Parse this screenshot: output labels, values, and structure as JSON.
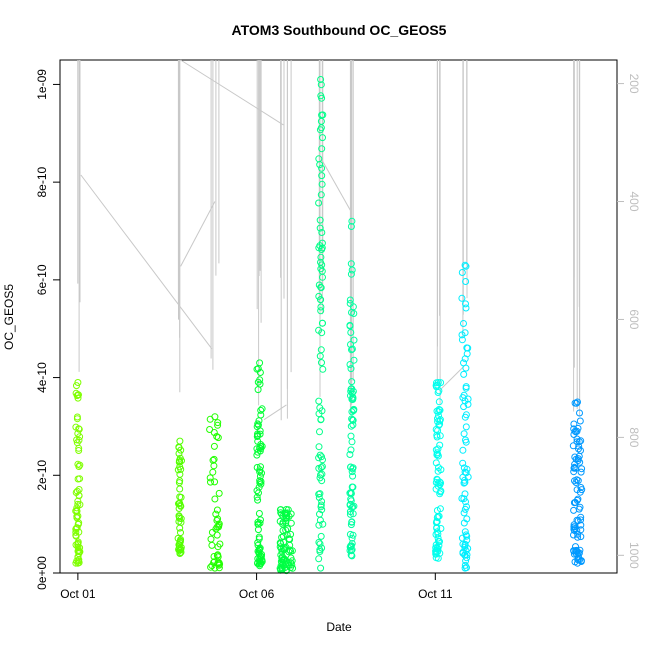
{
  "chart_data": {
    "type": "scatter",
    "title": "ATOM3 Southbound OC_GEOS5",
    "xlabel": "Date",
    "ylabel": "OC_GEOS5",
    "x_axis": {
      "type": "date",
      "range": [
        "2016-09-30T12:00",
        "2016-10-16T02:00"
      ],
      "ticks": [
        {
          "value": "2016-10-01",
          "label": "Oct 01"
        },
        {
          "value": "2016-10-06",
          "label": "Oct 06"
        },
        {
          "value": "2016-10-11",
          "label": "Oct 11"
        }
      ]
    },
    "y_axis_left": {
      "range": [
        0,
        1.05e-09
      ],
      "ticks": [
        {
          "value": 0,
          "label": "0e+00"
        },
        {
          "value": 2e-10,
          "label": "2e-10"
        },
        {
          "value": 4e-10,
          "label": "4e-10"
        },
        {
          "value": 6e-10,
          "label": "6e-10"
        },
        {
          "value": 8e-10,
          "label": "8e-10"
        },
        {
          "value": 1e-09,
          "label": "1e-09"
        }
      ]
    },
    "y_axis_right": {
      "quantity": "pressure",
      "reversed": true,
      "range": [
        160,
        1030
      ],
      "color": "#bebebe",
      "ticks": [
        {
          "value": 200,
          "label": "200"
        },
        {
          "value": 400,
          "label": "400"
        },
        {
          "value": 600,
          "label": "600"
        },
        {
          "value": 800,
          "label": "800"
        },
        {
          "value": 1000,
          "label": "1000"
        }
      ]
    },
    "marker": "open-circle",
    "grid": false,
    "legend": "none",
    "colors": {
      "axis": "#000000",
      "pressure_line": "#c8c8c8",
      "right_axis": "#bebebe"
    },
    "scatter_segments": [
      {
        "date": "2016-10-01T00:00",
        "width_days": 0.12,
        "vmin": 2e-11,
        "vmax": 3.9e-10,
        "color": "#7fff00"
      },
      {
        "date": "2016-10-03T20:30",
        "width_days": 0.1,
        "vmin": 4e-11,
        "vmax": 2.7e-10,
        "color": "#55ff00"
      },
      {
        "date": "2016-10-04T20:00",
        "width_days": 0.3,
        "vmin": 1e-11,
        "vmax": 3.2e-10,
        "color": "#22ff00"
      },
      {
        "date": "2016-10-06T02:00",
        "width_days": 0.15,
        "vmin": 1.5e-11,
        "vmax": 4.3e-10,
        "color": "#00ff33"
      },
      {
        "date": "2016-10-06T20:00",
        "width_days": 0.35,
        "vmin": 5e-12,
        "vmax": 1.3e-10,
        "color": "#00ff44"
      },
      {
        "date": "2016-10-07T19:00",
        "width_days": 0.12,
        "vmin": 1e-11,
        "vmax": 1.01e-09,
        "color": "#00ff88"
      },
      {
        "date": "2016-10-08T16:00",
        "width_days": 0.12,
        "vmin": 3.5e-11,
        "vmax": 7.2e-10,
        "color": "#00ffa0"
      },
      {
        "date": "2016-10-11T02:00",
        "width_days": 0.15,
        "vmin": 3e-11,
        "vmax": 3.9e-10,
        "color": "#00ffee"
      },
      {
        "date": "2016-10-11T20:00",
        "width_days": 0.18,
        "vmin": 1e-11,
        "vmax": 6.3e-10,
        "color": "#00eeff"
      },
      {
        "date": "2016-10-14T23:30",
        "width_days": 0.25,
        "vmin": 2e-11,
        "vmax": 3.5e-10,
        "color": "#0099ff"
      }
    ],
    "pressure_profiles": [
      {
        "date": "2016-10-01T00:00",
        "pmin": 150,
        "pmax": 780
      },
      {
        "date": "2016-10-03T20:30",
        "pmin": 150,
        "pmax": 830
      },
      {
        "date": "2016-10-04T20:00",
        "pmin": 150,
        "pmax": 780
      },
      {
        "date": "2016-10-06T02:00",
        "pmin": 150,
        "pmax": 770
      },
      {
        "date": "2016-10-06T20:00",
        "pmin": 150,
        "pmax": 800
      },
      {
        "date": "2016-10-07T19:00",
        "pmin": 150,
        "pmax": 760
      },
      {
        "date": "2016-10-08T16:00",
        "pmin": 150,
        "pmax": 770
      },
      {
        "date": "2016-10-11T02:00",
        "pmin": 150,
        "pmax": 820
      },
      {
        "date": "2016-10-11T20:00",
        "pmin": 150,
        "pmax": 790
      },
      {
        "date": "2016-10-14T23:30",
        "pmin": 150,
        "pmax": 780
      }
    ],
    "pressure_transits": [
      {
        "x": [
          "2016-10-01T02:00",
          "2016-10-04T18:00"
        ],
        "p": [
          355,
          650
        ]
      },
      {
        "x": [
          "2016-10-03T21:00",
          "2016-10-04T20:00"
        ],
        "p": [
          510,
          400
        ]
      },
      {
        "x": [
          "2016-10-03T21:00",
          "2016-10-06T18:00"
        ],
        "p": [
          160,
          270
        ]
      },
      {
        "x": [
          "2016-10-06T05:00",
          "2016-10-06T20:00"
        ],
        "p": [
          770,
          745
        ]
      },
      {
        "x": [
          "2016-10-07T20:00",
          "2016-10-08T15:00"
        ],
        "p": [
          330,
          415
        ]
      },
      {
        "x": [
          "2016-10-11T03:00",
          "2016-10-11T19:00"
        ],
        "p": [
          720,
          680
        ]
      }
    ]
  }
}
